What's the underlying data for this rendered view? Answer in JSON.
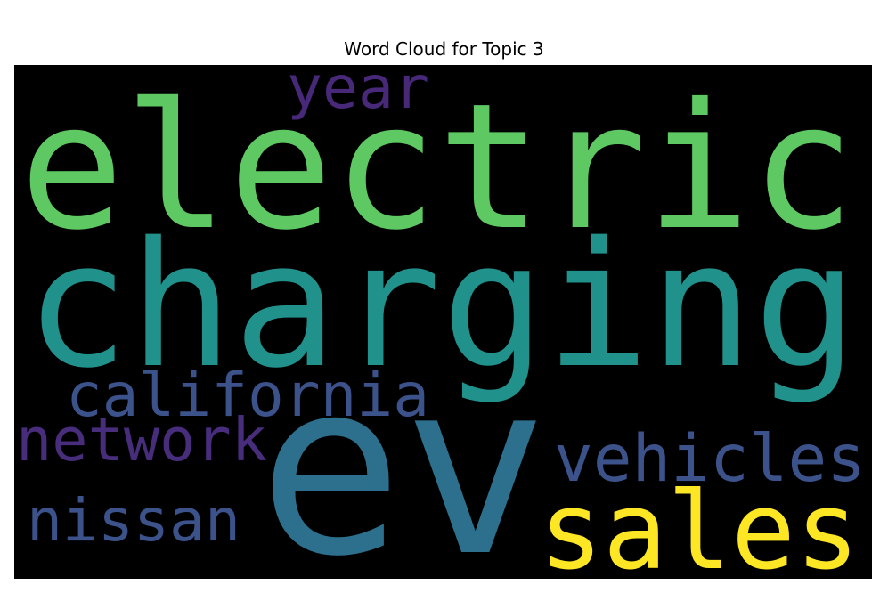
{
  "figure": {
    "title": "Word Cloud for Topic 3"
  },
  "chart_data": {
    "type": "wordcloud",
    "title": "Word Cloud for Topic 3",
    "background": "#000000",
    "colormap": "viridis",
    "words": [
      {
        "text": "ev",
        "weight": 1.0,
        "color": "#2d708e"
      },
      {
        "text": "charging",
        "weight": 0.78,
        "color": "#21918c"
      },
      {
        "text": "electric",
        "weight": 0.75,
        "color": "#5ec962"
      },
      {
        "text": "sales",
        "weight": 0.45,
        "color": "#fde725"
      },
      {
        "text": "vehicles",
        "weight": 0.3,
        "color": "#3b528b"
      },
      {
        "text": "california",
        "weight": 0.28,
        "color": "#3b528b"
      },
      {
        "text": "nissan",
        "weight": 0.28,
        "color": "#3b528b"
      },
      {
        "text": "network",
        "weight": 0.27,
        "color": "#472d7b"
      },
      {
        "text": "year",
        "weight": 0.25,
        "color": "#482878"
      }
    ]
  }
}
